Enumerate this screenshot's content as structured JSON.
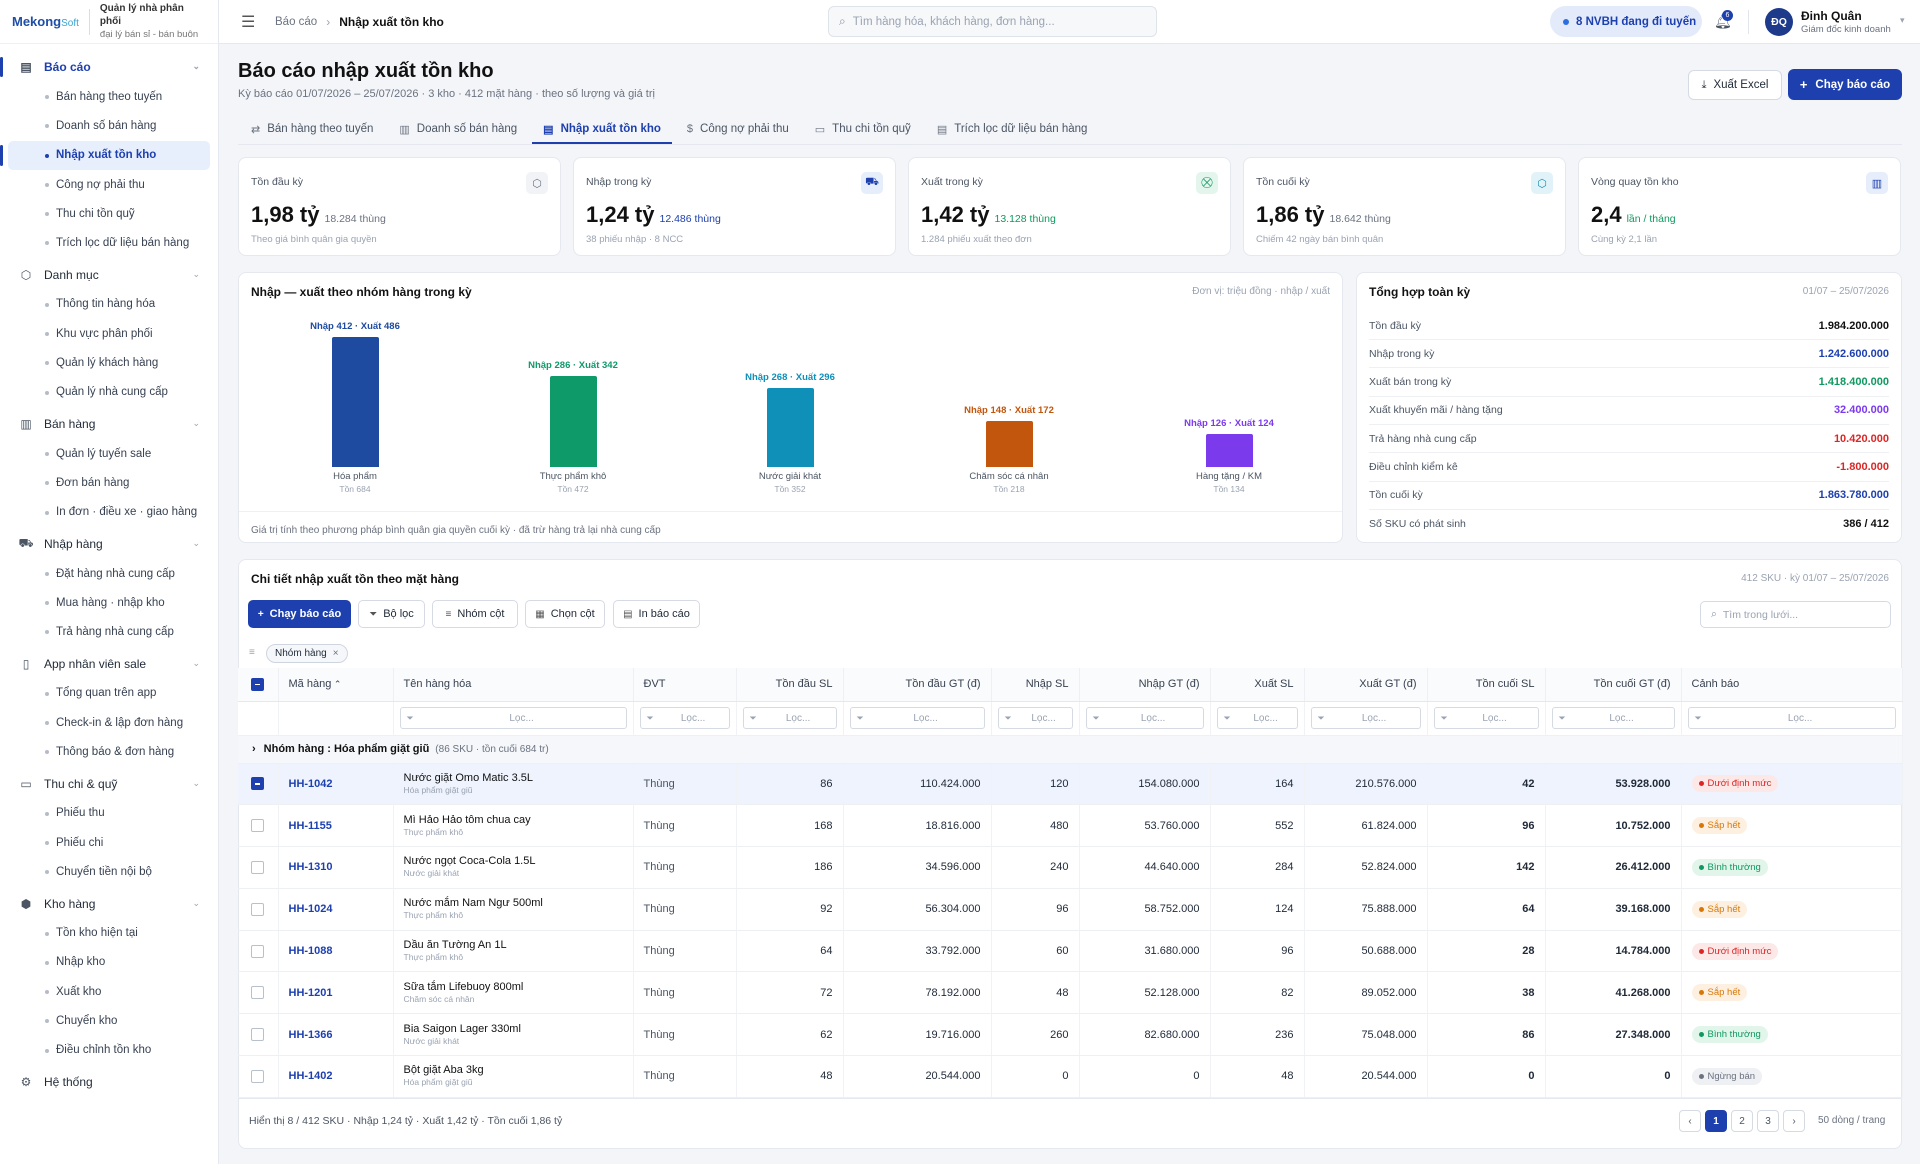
{
  "brand": {
    "name_a": "Mekong",
    "name_b": "Soft",
    "tagline_1": "Quản lý nhà phân phối",
    "tagline_2": "đại lý bán sỉ - bán buôn"
  },
  "sidebar": {
    "groups": [
      {
        "label": "Báo cáo",
        "icon": "report-icon",
        "items": [
          "Bán hàng theo tuyến",
          "Doanh số bán hàng",
          "Nhập xuất tồn kho",
          "Công nợ phải thu",
          "Thu chi tồn quỹ",
          "Trích lọc dữ liệu bán hàng"
        ]
      },
      {
        "label": "Danh mục",
        "icon": "box-icon",
        "items": [
          "Thông tin hàng hóa",
          "Khu vực phân phối",
          "Quản lý khách hàng",
          "Quản lý nhà cung cấp"
        ]
      },
      {
        "label": "Bán hàng",
        "icon": "receipt-icon",
        "items": [
          "Quản lý tuyến sale",
          "Đơn bán hàng",
          "In đơn · điều xe · giao hàng"
        ]
      },
      {
        "label": "Nhập hàng",
        "icon": "truck-icon",
        "items": [
          "Đặt hàng nhà cung cấp",
          "Mua hàng · nhập kho",
          "Trả hàng nhà cung cấp"
        ]
      },
      {
        "label": "App nhân viên sale",
        "icon": "phone-icon",
        "items": [
          "Tổng quan trên app",
          "Check-in & lập đơn hàng",
          "Thông báo & đơn hàng"
        ]
      },
      {
        "label": "Thu chi & quỹ",
        "icon": "cash-icon",
        "items": [
          "Phiếu thu",
          "Phiếu chi",
          "Chuyển tiền nội bộ"
        ]
      },
      {
        "label": "Kho hàng",
        "icon": "warehouse-icon",
        "items": [
          "Tồn kho hiện tại",
          "Nhập kho",
          "Xuất kho",
          "Chuyển kho",
          "Điều chỉnh tồn kho"
        ]
      },
      {
        "label": "Hệ thống",
        "icon": "gear-icon",
        "items": []
      }
    ]
  },
  "topbar": {
    "breadcrumb_root": "Báo cáo",
    "breadcrumb_current": "Nhập xuất tồn kho",
    "search_placeholder": "Tìm hàng hóa, khách hàng, đơn hàng...",
    "status_pill": "8 NVBH đang đi tuyến",
    "notif_count": "6",
    "user_initials": "ĐQ",
    "user_name": "Đinh Quân",
    "user_role": "Giám đốc kinh doanh"
  },
  "page": {
    "title": "Báo cáo nhập xuất tồn kho",
    "subtitle": "Kỳ báo cáo 01/07/2026 – 25/07/2026 · 3 kho · 412 mặt hàng · theo số lượng và giá trị",
    "export_label": "Xuất Excel",
    "run_label": "Chạy báo cáo"
  },
  "tabs": [
    {
      "label": "Bán hàng theo tuyến",
      "icon": "route-icon"
    },
    {
      "label": "Doanh số bán hàng",
      "icon": "bar-chart-icon"
    },
    {
      "label": "Nhập xuất tồn kho",
      "icon": "document-icon"
    },
    {
      "label": "Công nợ phải thu",
      "icon": "dollar-icon"
    },
    {
      "label": "Thu chi tồn quỹ",
      "icon": "wallet-icon"
    },
    {
      "label": "Trích lọc dữ liệu bán hàng",
      "icon": "filter-doc-icon"
    }
  ],
  "kpis": [
    {
      "label": "Tồn đầu kỳ",
      "value": "1,98 tỷ",
      "extra": "18.284 thùng",
      "note": "Theo giá bình quân gia quyền",
      "icon": "box-icon",
      "color": "#6b7280",
      "bg": "#f1f3f6"
    },
    {
      "label": "Nhập trong kỳ",
      "value": "1,24 tỷ",
      "extra": "12.486 thùng",
      "note": "38 phiếu nhập · 8 NCC",
      "icon": "truck-icon",
      "color": "#1e40af",
      "bg": "#e6edfb"
    },
    {
      "label": "Xuất trong kỳ",
      "value": "1,42 tỷ",
      "extra": "13.128 thùng",
      "note": "1.284 phiếu xuất theo đơn",
      "icon": "cart-icon",
      "color": "#0f9960",
      "bg": "#e3f5ec"
    },
    {
      "label": "Tồn cuối kỳ",
      "value": "1,86 tỷ",
      "extra": "18.642 thùng",
      "note": "Chiếm 42 ngày bán bình quân",
      "icon": "box-icon",
      "color": "#0e8fb3",
      "bg": "#e1f3f8"
    },
    {
      "label": "Vòng quay tồn kho",
      "value": "2,4",
      "extra": "lần / tháng",
      "note": "Cùng kỳ 2,1 lần",
      "icon": "bar-chart-icon",
      "color": "#1e40af",
      "bg": "#e6edfb"
    }
  ],
  "chart": {
    "title": "Nhập — xuất theo nhóm hàng trong kỳ",
    "unit": "Đơn vị: triệu đồng · nhập / xuất",
    "footnote": "Giá trị tính theo phương pháp bình quân gia quyền cuối kỳ · đã trừ hàng trả lại nhà cung cấp"
  },
  "chart_data": {
    "type": "bar",
    "categories": [
      "Hóa phẩm",
      "Thực phẩm khô",
      "Nước giải khát",
      "Chăm sóc cá nhân",
      "Hàng tặng / KM"
    ],
    "labels": [
      "Nhập 412 · Xuất 486",
      "Nhập 286 · Xuất 342",
      "Nhập 268 · Xuất 296",
      "Nhập 148 · Xuất 172",
      "Nhập 126 · Xuất 124"
    ],
    "ton": [
      "Tồn 684",
      "Tồn 472",
      "Tồn 352",
      "Tồn 218",
      "Tồn 134"
    ],
    "series": [
      {
        "name": "Nhập",
        "values": [
          412,
          286,
          268,
          148,
          126
        ]
      },
      {
        "name": "Xuất",
        "values": [
          486,
          342,
          296,
          172,
          124
        ]
      }
    ],
    "colors": [
      "#1e4aa0",
      "#0f9a6a",
      "#0e90b8",
      "#c2560c",
      "#7c3aed"
    ]
  },
  "summary": {
    "title": "Tổng hợp toàn kỳ",
    "period": "01/07 – 25/07/2026",
    "rows": [
      {
        "label": "Tồn đầu kỳ",
        "value": "1.984.200.000",
        "color": "#111111"
      },
      {
        "label": "Nhập trong kỳ",
        "value": "1.242.600.000",
        "color": "#1e40af"
      },
      {
        "label": "Xuất bán trong kỳ",
        "value": "1.418.400.000",
        "color": "#0f9960"
      },
      {
        "label": "Xuất khuyến mãi / hàng tặng",
        "value": "32.400.000",
        "color": "#7c3aed"
      },
      {
        "label": "Trả hàng nhà cung cấp",
        "value": "10.420.000",
        "color": "#dc2626"
      },
      {
        "label": "Điều chỉnh kiểm kê",
        "value": "-1.800.000",
        "color": "#dc2626"
      },
      {
        "label": "Tồn cuối kỳ",
        "value": "1.863.780.000",
        "color": "#1e40af"
      },
      {
        "label": "Số SKU có phát sinh",
        "value": "386 / 412",
        "color": "#111111"
      }
    ]
  },
  "detail": {
    "title": "Chi tiết nhập xuất tồn theo mặt hàng",
    "meta": "412 SKU · kỳ 01/07 – 25/07/2026",
    "toolbar": {
      "run": "Chạy báo cáo",
      "filter": "Bộ lọc",
      "group": "Nhóm cột",
      "columns": "Chọn cột",
      "print": "In báo cáo"
    },
    "grid_search_placeholder": "Tìm trong lưới...",
    "group_chip": "Nhóm hàng",
    "filter_placeholder": "Lọc...",
    "columns": [
      "Mã hàng",
      "Tên hàng hóa",
      "ĐVT",
      "Tồn đầu SL",
      "Tồn đầu GT (đ)",
      "Nhập SL",
      "Nhập GT (đ)",
      "Xuất SL",
      "Xuất GT (đ)",
      "Tồn cuối SL",
      "Tồn cuối GT (đ)",
      "Cảnh báo"
    ],
    "group_label": "Nhóm hàng",
    "group_value": "Hóa phẩm giặt giũ",
    "group_info": "(86 SKU · tồn cuối 684 tr)",
    "rows": [
      {
        "code": "HH-1042",
        "name": "Nước giặt Omo Matic 3.5L",
        "cat": "Hóa phẩm giặt giũ",
        "unit": "Thùng",
        "open_qty": "86",
        "open_val": "110.424.000",
        "in_qty": "120",
        "in_val": "154.080.000",
        "out_qty": "164",
        "out_val": "210.576.000",
        "close_qty": "42",
        "close_val": "53.928.000",
        "warn": "Dưới định mức",
        "warn_type": "red",
        "selected": true
      },
      {
        "code": "HH-1155",
        "name": "Mì Hảo Hảo tôm chua cay",
        "cat": "Thực phẩm khô",
        "unit": "Thùng",
        "open_qty": "168",
        "open_val": "18.816.000",
        "in_qty": "480",
        "in_val": "53.760.000",
        "out_qty": "552",
        "out_val": "61.824.000",
        "close_qty": "96",
        "close_val": "10.752.000",
        "warn": "Sắp hết",
        "warn_type": "orange",
        "selected": false
      },
      {
        "code": "HH-1310",
        "name": "Nước ngọt Coca-Cola 1.5L",
        "cat": "Nước giải khát",
        "unit": "Thùng",
        "open_qty": "186",
        "open_val": "34.596.000",
        "in_qty": "240",
        "in_val": "44.640.000",
        "out_qty": "284",
        "out_val": "52.824.000",
        "close_qty": "142",
        "close_val": "26.412.000",
        "warn": "Bình thường",
        "warn_type": "green",
        "selected": false
      },
      {
        "code": "HH-1024",
        "name": "Nước mắm Nam Ngư 500ml",
        "cat": "Thực phẩm khô",
        "unit": "Thùng",
        "open_qty": "92",
        "open_val": "56.304.000",
        "in_qty": "96",
        "in_val": "58.752.000",
        "out_qty": "124",
        "out_val": "75.888.000",
        "close_qty": "64",
        "close_val": "39.168.000",
        "warn": "Sắp hết",
        "warn_type": "orange",
        "selected": false
      },
      {
        "code": "HH-1088",
        "name": "Dầu ăn Tường An 1L",
        "cat": "Thực phẩm khô",
        "unit": "Thùng",
        "open_qty": "64",
        "open_val": "33.792.000",
        "in_qty": "60",
        "in_val": "31.680.000",
        "out_qty": "96",
        "out_val": "50.688.000",
        "close_qty": "28",
        "close_val": "14.784.000",
        "warn": "Dưới định mức",
        "warn_type": "red",
        "selected": false
      },
      {
        "code": "HH-1201",
        "name": "Sữa tắm Lifebuoy 800ml",
        "cat": "Chăm sóc cá nhân",
        "unit": "Thùng",
        "open_qty": "72",
        "open_val": "78.192.000",
        "in_qty": "48",
        "in_val": "52.128.000",
        "out_qty": "82",
        "out_val": "89.052.000",
        "close_qty": "38",
        "close_val": "41.268.000",
        "warn": "Sắp hết",
        "warn_type": "orange",
        "selected": false
      },
      {
        "code": "HH-1366",
        "name": "Bia Saigon Lager 330ml",
        "cat": "Nước giải khát",
        "unit": "Thùng",
        "open_qty": "62",
        "open_val": "19.716.000",
        "in_qty": "260",
        "in_val": "82.680.000",
        "out_qty": "236",
        "out_val": "75.048.000",
        "close_qty": "86",
        "close_val": "27.348.000",
        "warn": "Bình thường",
        "warn_type": "green",
        "selected": false
      },
      {
        "code": "HH-1402",
        "name": "Bột giặt Aba 3kg",
        "cat": "Hóa phẩm giặt giũ",
        "unit": "Thùng",
        "open_qty": "48",
        "open_val": "20.544.000",
        "in_qty": "0",
        "in_val": "0",
        "out_qty": "48",
        "out_val": "20.544.000",
        "close_qty": "0",
        "close_val": "0",
        "warn": "Ngừng bán",
        "warn_type": "gray",
        "selected": false
      }
    ],
    "footer": "Hiển thị 8 / 412 SKU · Nhập 1,24 tỷ · Xuất 1,42 tỷ · Tồn cuối 1,86 tỷ",
    "pages": [
      "‹",
      "1",
      "2",
      "3",
      "›"
    ],
    "current_page": "1",
    "per_page": "50 dòng / trang"
  }
}
